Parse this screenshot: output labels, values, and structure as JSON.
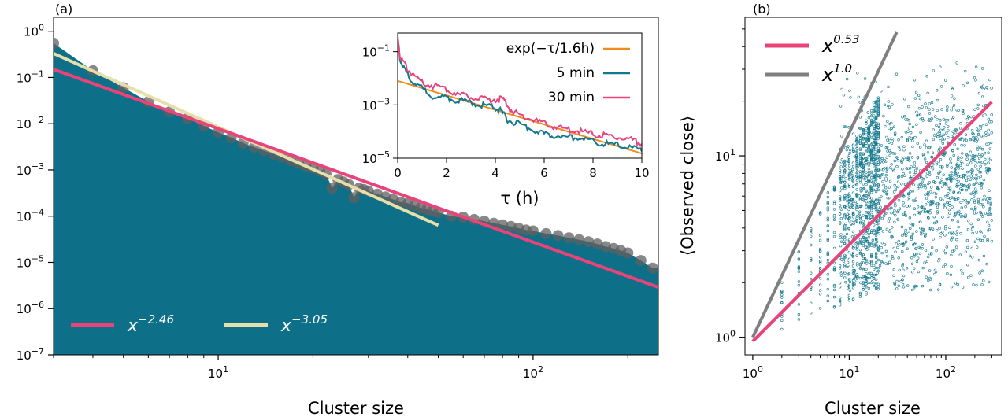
{
  "chart_data": [
    {
      "id": "a",
      "type": "area",
      "panel_label": "(a)",
      "xlabel": "Cluster size",
      "ylabel": "",
      "xscale": "log",
      "yscale": "log",
      "xlim": [
        3,
        250
      ],
      "ylim": [
        1e-07,
        2
      ],
      "x_ticks": [
        {
          "base": "10",
          "exp": "1"
        },
        {
          "base": "10",
          "exp": "2"
        }
      ],
      "y_ticks": [
        {
          "base": "10",
          "exp": "0"
        },
        {
          "base": "10",
          "exp": "−1"
        },
        {
          "base": "10",
          "exp": "−2"
        },
        {
          "base": "10",
          "exp": "−3"
        },
        {
          "base": "10",
          "exp": "−4"
        },
        {
          "base": "10",
          "exp": "−5"
        },
        {
          "base": "10",
          "exp": "−6"
        },
        {
          "base": "10",
          "exp": "−7"
        }
      ],
      "fill_color": "#0e6f88",
      "points": {
        "color": "#606060",
        "x": [
          3,
          4,
          5,
          6,
          7,
          8,
          9,
          10,
          11,
          12,
          13,
          14,
          15,
          16,
          17,
          18,
          19,
          20,
          21,
          22,
          23,
          24,
          25,
          26,
          27,
          28,
          29,
          30,
          32,
          34,
          36,
          38,
          40,
          42,
          44,
          46,
          48,
          50,
          55,
          60,
          65,
          70,
          75,
          80,
          85,
          90,
          95,
          100,
          110,
          120,
          130,
          140,
          150,
          160,
          170,
          180,
          190,
          200,
          220,
          240
        ],
        "y": [
          0.55,
          0.14,
          0.06,
          0.03,
          0.018,
          0.013,
          0.009,
          0.0065,
          0.005,
          0.0038,
          0.0031,
          0.0026,
          0.0022,
          0.0019,
          0.0016,
          0.0014,
          0.0012,
          0.0011,
          0.00095,
          0.00082,
          0.0004,
          0.00062,
          0.00055,
          0.00048,
          0.00025,
          0.0004,
          0.00038,
          0.00035,
          0.0003,
          0.00026,
          0.00023,
          0.0002,
          0.00019,
          0.00017,
          0.00015,
          0.00014,
          0.00013,
          0.00012,
          0.0001,
          9.5e-05,
          8.5e-05,
          7.8e-05,
          7e-05,
          6.5e-05,
          6e-05,
          5.5e-05,
          5e-05,
          4.8e-05,
          4.2e-05,
          3.8e-05,
          3.4e-05,
          3.1e-05,
          2.8e-05,
          2.5e-05,
          2.2e-05,
          2e-05,
          1.8e-05,
          1.6e-05,
          1.1e-05,
          7.5e-06
        ]
      },
      "series": [
        {
          "name": "x^{-2.46}",
          "base": "x",
          "exp": "−2.46",
          "color": "#e8447a",
          "x": [
            3,
            250
          ],
          "y": [
            0.15,
            2.9e-06
          ]
        },
        {
          "name": "x^{-3.05}",
          "base": "x",
          "exp": "−3.05",
          "color": "#e6dfaa",
          "x": [
            3,
            50
          ],
          "y": [
            0.33,
            6.35e-05
          ]
        }
      ],
      "legend_placement": "lower-left",
      "inset": {
        "type": "line",
        "xlabel": "τ (h)",
        "xlim": [
          0,
          10
        ],
        "ylim": [
          1e-05,
          0.5
        ],
        "yscale": "log",
        "x_ticks": [
          "0",
          "2",
          "4",
          "6",
          "8",
          "10"
        ],
        "y_ticks": [
          {
            "base": "10",
            "exp": "−1"
          },
          {
            "base": "10",
            "exp": "−3"
          },
          {
            "base": "10",
            "exp": "−5"
          }
        ],
        "legend_placement": "top-right",
        "series": [
          {
            "name": "exp(−τ/1.6h)",
            "color": "#f08c1e",
            "x": [
              0,
              10
            ],
            "y": [
              0.008,
              1.5e-05
            ]
          },
          {
            "name": "5 min",
            "color": "#13788e",
            "x": [
              0,
              0.1,
              0.3,
              0.6,
              1.0,
              1.5,
              2.0,
              2.5,
              3.0,
              3.5,
              3.9,
              4.2,
              4.5,
              5.0,
              5.5,
              6.0,
              6.5,
              7.0,
              7.5,
              8.0,
              8.5,
              9.0,
              9.5,
              10.0
            ],
            "y": [
              0.3,
              0.05,
              0.02,
              0.008,
              0.004,
              0.002,
              0.0018,
              0.0015,
              0.0012,
              0.001,
              0.00085,
              0.0006,
              0.00028,
              0.00018,
              0.00012,
              8e-05,
              7e-05,
              6e-05,
              6e-05,
              4e-05,
              3.5e-05,
              3e-05,
              2.5e-05,
              1.8e-05
            ]
          },
          {
            "name": "30 min",
            "color": "#e8447a",
            "x": [
              0,
              0.1,
              0.3,
              0.6,
              1.0,
              1.5,
              2.0,
              2.5,
              3.0,
              3.5,
              4.0,
              4.3,
              4.6,
              5.0,
              5.5,
              6.0,
              6.5,
              7.0,
              7.5,
              8.0,
              8.5,
              9.0,
              9.5,
              10.0
            ],
            "y": [
              0.35,
              0.06,
              0.03,
              0.015,
              0.007,
              0.005,
              0.004,
              0.0025,
              0.0019,
              0.0016,
              0.0016,
              0.0017,
              0.0007,
              0.0004,
              0.00028,
              0.0002,
              0.00015,
              0.00012,
              0.0001,
              8e-05,
              7e-05,
              6e-05,
              5e-05,
              3.5e-05
            ]
          }
        ]
      }
    },
    {
      "id": "b",
      "type": "scatter",
      "panel_label": "(b)",
      "xlabel": "Cluster size",
      "ylabel": "⟨Observed close⟩",
      "xscale": "log",
      "yscale": "log",
      "xlim": [
        0.83,
        380
      ],
      "ylim": [
        0.8,
        58
      ],
      "x_ticks": [
        {
          "base": "10",
          "exp": "0"
        },
        {
          "base": "10",
          "exp": "1"
        },
        {
          "base": "10",
          "exp": "2"
        }
      ],
      "y_ticks": [
        {
          "base": "10",
          "exp": "0"
        },
        {
          "base": "10",
          "exp": "1"
        }
      ],
      "scatter_color": "#13788e",
      "scatter_region": {
        "x_min": 2,
        "x_max": 300
      },
      "series": [
        {
          "name": "x^{0.53}",
          "base": "x",
          "exp": "0.53",
          "color": "#e8447a",
          "x": [
            1,
            300
          ],
          "y": [
            0.95,
            19.8
          ]
        },
        {
          "name": "x^{1.0}",
          "base": "x",
          "exp": "1.0",
          "color": "#7f7f7f",
          "x": [
            1,
            31
          ],
          "y": [
            1.0,
            48
          ]
        }
      ],
      "legend_placement": "top-left"
    }
  ]
}
